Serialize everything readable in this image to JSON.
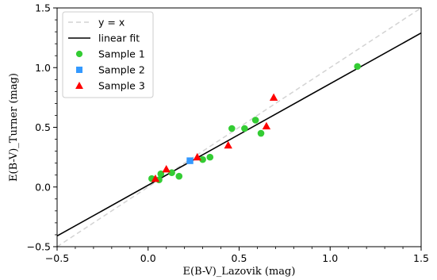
{
  "chart_data": {
    "type": "scatter",
    "xlabel": "E(B-V)_Lazovik (mag)",
    "ylabel": "E(B-V)_Turner (mag)",
    "xlim": [
      -0.5,
      1.5
    ],
    "ylim": [
      -0.5,
      1.5
    ],
    "xticks": [
      -0.5,
      0.0,
      0.5,
      1.0,
      1.5
    ],
    "yticks": [
      -0.5,
      0.0,
      0.5,
      1.0,
      1.5
    ],
    "xtick_labels": [
      "−0.5",
      "0.0",
      "0.5",
      "1.0",
      "1.5"
    ],
    "ytick_labels": [
      "−0.5",
      "0.0",
      "0.5",
      "1.0",
      "1.5"
    ],
    "grid": false,
    "legend_position": "upper-left",
    "lines": [
      {
        "name": "y = x",
        "style": "dashed",
        "color": "#d3d3d3",
        "x": [
          -0.5,
          1.5
        ],
        "y": [
          -0.5,
          1.5
        ]
      },
      {
        "name": "linear fit",
        "style": "solid",
        "color": "#000000",
        "x": [
          -0.5,
          1.5
        ],
        "y": [
          -0.41,
          1.29
        ]
      }
    ],
    "series": [
      {
        "name": "Sample 1",
        "marker": "circle",
        "color": "#33cc33",
        "x": [
          0.02,
          0.06,
          0.07,
          0.13,
          0.17,
          0.3,
          0.34,
          0.46,
          0.53,
          0.59,
          0.62,
          1.15
        ],
        "y": [
          0.07,
          0.06,
          0.11,
          0.12,
          0.09,
          0.23,
          0.25,
          0.49,
          0.49,
          0.56,
          0.45,
          1.01
        ]
      },
      {
        "name": "Sample 2",
        "marker": "square",
        "color": "#3399ff",
        "x": [
          0.23
        ],
        "y": [
          0.22
        ]
      },
      {
        "name": "Sample 3",
        "marker": "triangle",
        "color": "#ff0000",
        "x": [
          0.04,
          0.1,
          0.27,
          0.44,
          0.65,
          0.69
        ],
        "y": [
          0.07,
          0.15,
          0.25,
          0.35,
          0.51,
          0.75
        ]
      }
    ]
  }
}
